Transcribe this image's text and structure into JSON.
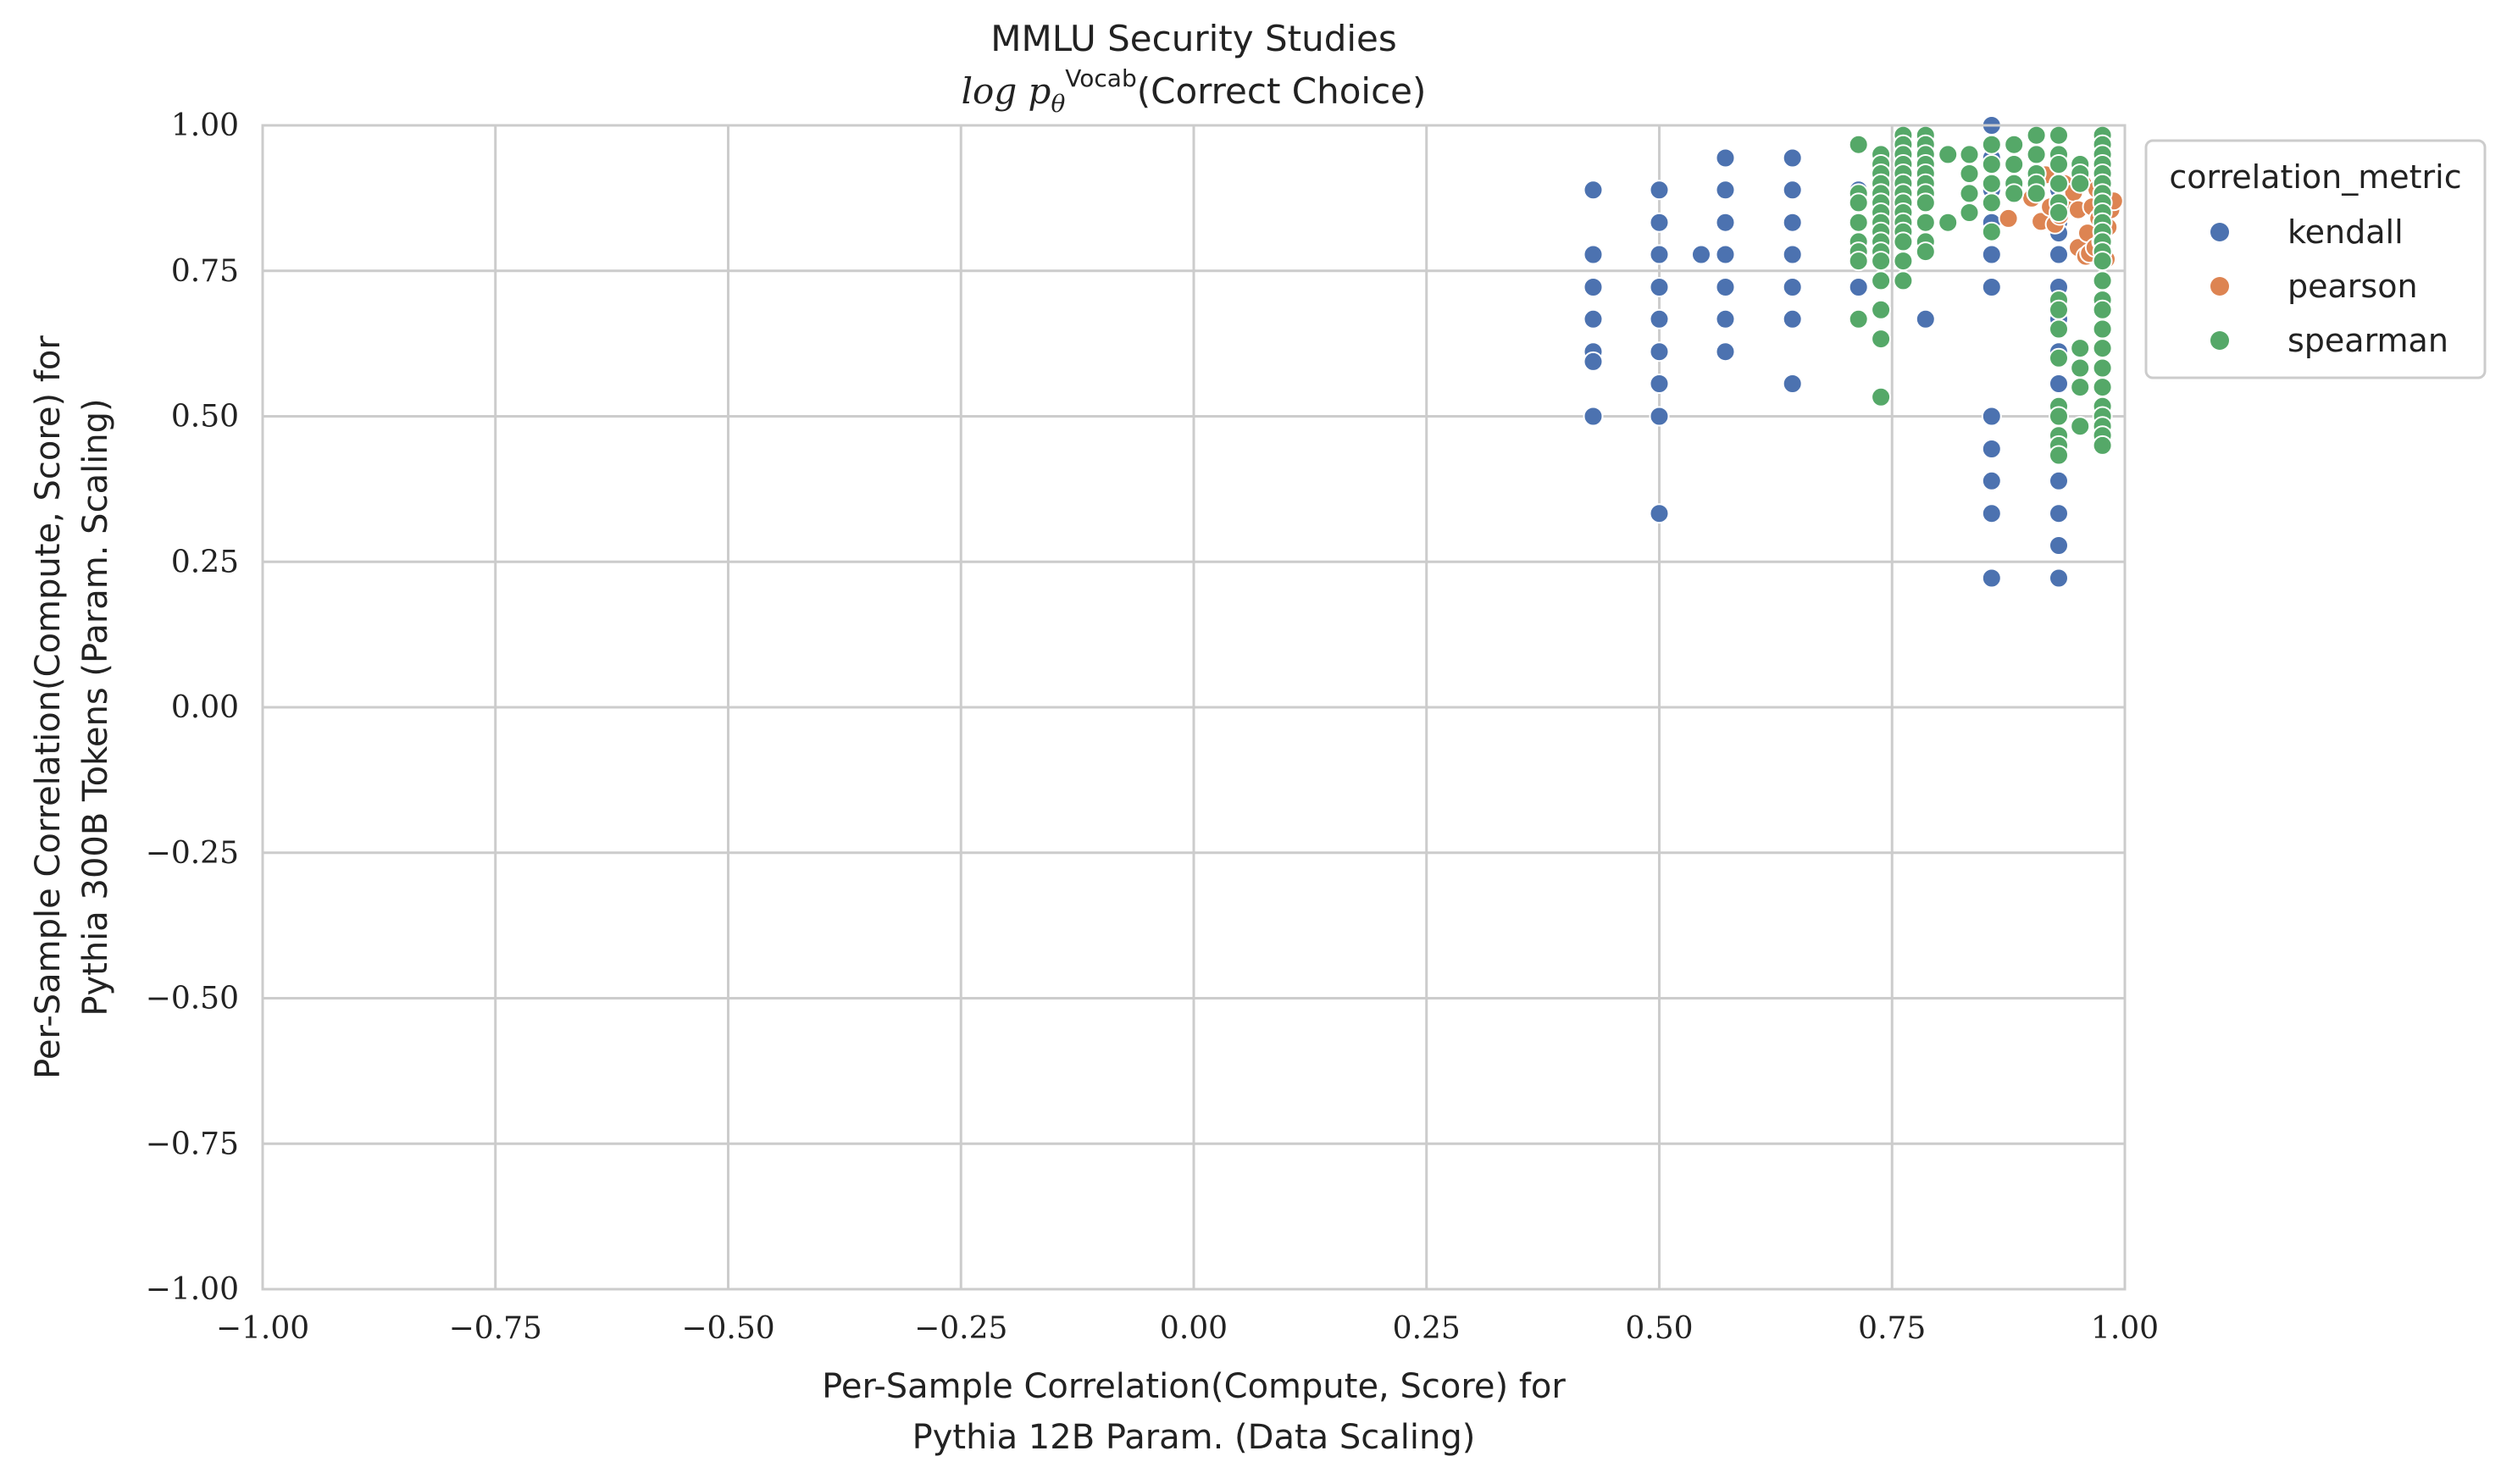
{
  "chart_data": {
    "type": "scatter",
    "title": "MMLU Security Studies",
    "subtitle_math": "log p",
    "subtitle_sub": "θ",
    "subtitle_sup": "Vocab",
    "subtitle_rest": "(Correct Choice)",
    "xlabel_line1": "Per-Sample Correlation(Compute, Score) for",
    "xlabel_line2": "Pythia 12B Param. (Data Scaling)",
    "ylabel_line1": "Per-Sample Correlation(Compute, Score) for",
    "ylabel_line2": "Pythia 300B Tokens (Param. Scaling)",
    "xlim": [
      -1.0,
      1.0
    ],
    "ylim": [
      -1.0,
      1.0
    ],
    "xticks": [
      "−1.00",
      "−0.75",
      "−0.50",
      "−0.25",
      "0.00",
      "0.25",
      "0.50",
      "0.75",
      "1.00"
    ],
    "yticks": [
      "1.00",
      "0.75",
      "0.50",
      "0.25",
      "0.00",
      "−0.25",
      "−0.50",
      "−0.75",
      "−1.00"
    ],
    "grid": true,
    "legend": {
      "title": "correlation_metric",
      "placement": "outside-top-right",
      "entries": [
        "kendall",
        "pearson",
        "spearman"
      ]
    },
    "series": [
      {
        "name": "kendall",
        "color": "#4c72b0",
        "points": [
          [
            0.429,
            0.889
          ],
          [
            0.429,
            0.778
          ],
          [
            0.429,
            0.722
          ],
          [
            0.429,
            0.667
          ],
          [
            0.429,
            0.611
          ],
          [
            0.429,
            0.594
          ],
          [
            0.429,
            0.5
          ],
          [
            0.5,
            0.889
          ],
          [
            0.5,
            0.833
          ],
          [
            0.5,
            0.778
          ],
          [
            0.5,
            0.722
          ],
          [
            0.5,
            0.667
          ],
          [
            0.5,
            0.611
          ],
          [
            0.5,
            0.556
          ],
          [
            0.5,
            0.5
          ],
          [
            0.5,
            0.333
          ],
          [
            0.545,
            0.778
          ],
          [
            0.571,
            0.944
          ],
          [
            0.571,
            0.889
          ],
          [
            0.571,
            0.833
          ],
          [
            0.571,
            0.778
          ],
          [
            0.571,
            0.722
          ],
          [
            0.571,
            0.667
          ],
          [
            0.571,
            0.611
          ],
          [
            0.643,
            0.944
          ],
          [
            0.643,
            0.889
          ],
          [
            0.643,
            0.833
          ],
          [
            0.643,
            0.778
          ],
          [
            0.643,
            0.722
          ],
          [
            0.643,
            0.667
          ],
          [
            0.643,
            0.556
          ],
          [
            0.714,
            0.833
          ],
          [
            0.714,
            0.778
          ],
          [
            0.714,
            0.722
          ],
          [
            0.714,
            0.889
          ],
          [
            0.786,
            0.667
          ],
          [
            0.786,
            0.833
          ],
          [
            0.857,
            1.0
          ],
          [
            0.857,
            0.944
          ],
          [
            0.857,
            0.889
          ],
          [
            0.857,
            0.833
          ],
          [
            0.857,
            0.778
          ],
          [
            0.857,
            0.722
          ],
          [
            0.857,
            0.5
          ],
          [
            0.857,
            0.444
          ],
          [
            0.857,
            0.389
          ],
          [
            0.857,
            0.333
          ],
          [
            0.857,
            0.222
          ],
          [
            0.929,
            0.944
          ],
          [
            0.929,
            0.889
          ],
          [
            0.929,
            0.833
          ],
          [
            0.929,
            0.815
          ],
          [
            0.929,
            0.778
          ],
          [
            0.929,
            0.722
          ],
          [
            0.929,
            0.685
          ],
          [
            0.929,
            0.667
          ],
          [
            0.929,
            0.648
          ],
          [
            0.929,
            0.611
          ],
          [
            0.929,
            0.556
          ],
          [
            0.929,
            0.5
          ],
          [
            0.929,
            0.444
          ],
          [
            0.929,
            0.389
          ],
          [
            0.929,
            0.333
          ],
          [
            0.929,
            0.278
          ],
          [
            0.929,
            0.222
          ],
          [
            0.976,
            0.889
          ],
          [
            0.976,
            0.833
          ]
        ]
      },
      {
        "name": "pearson",
        "color": "#dd8452",
        "points": [
          [
            0.875,
            0.84
          ],
          [
            0.9,
            0.875
          ],
          [
            0.91,
            0.835
          ],
          [
            0.915,
            0.915
          ],
          [
            0.92,
            0.86
          ],
          [
            0.925,
            0.83
          ],
          [
            0.93,
            0.845
          ],
          [
            0.935,
            0.9
          ],
          [
            0.94,
            0.87
          ],
          [
            0.945,
            0.885
          ],
          [
            0.95,
            0.79
          ],
          [
            0.95,
            0.855
          ],
          [
            0.955,
            0.9
          ],
          [
            0.958,
            0.775
          ],
          [
            0.96,
            0.815
          ],
          [
            0.962,
            0.78
          ],
          [
            0.965,
            0.86
          ],
          [
            0.968,
            0.79
          ],
          [
            0.97,
            0.89
          ],
          [
            0.972,
            0.84
          ],
          [
            0.975,
            0.8
          ],
          [
            0.978,
            0.87
          ],
          [
            0.98,
            0.77
          ],
          [
            0.982,
            0.825
          ],
          [
            0.985,
            0.855
          ],
          [
            0.988,
            0.87
          ]
        ]
      },
      {
        "name": "spearman",
        "color": "#55a868",
        "points": [
          [
            0.714,
            0.967
          ],
          [
            0.714,
            0.883
          ],
          [
            0.714,
            0.867
          ],
          [
            0.714,
            0.833
          ],
          [
            0.714,
            0.8
          ],
          [
            0.714,
            0.783
          ],
          [
            0.714,
            0.767
          ],
          [
            0.714,
            0.667
          ],
          [
            0.738,
            0.95
          ],
          [
            0.738,
            0.933
          ],
          [
            0.738,
            0.917
          ],
          [
            0.738,
            0.9
          ],
          [
            0.738,
            0.883
          ],
          [
            0.738,
            0.867
          ],
          [
            0.738,
            0.85
          ],
          [
            0.738,
            0.833
          ],
          [
            0.738,
            0.817
          ],
          [
            0.738,
            0.8
          ],
          [
            0.738,
            0.783
          ],
          [
            0.738,
            0.767
          ],
          [
            0.738,
            0.733
          ],
          [
            0.738,
            0.683
          ],
          [
            0.738,
            0.633
          ],
          [
            0.738,
            0.533
          ],
          [
            0.762,
            0.983
          ],
          [
            0.762,
            0.967
          ],
          [
            0.762,
            0.95
          ],
          [
            0.762,
            0.933
          ],
          [
            0.762,
            0.917
          ],
          [
            0.762,
            0.9
          ],
          [
            0.762,
            0.883
          ],
          [
            0.762,
            0.867
          ],
          [
            0.762,
            0.85
          ],
          [
            0.762,
            0.833
          ],
          [
            0.762,
            0.817
          ],
          [
            0.762,
            0.8
          ],
          [
            0.762,
            0.767
          ],
          [
            0.762,
            0.733
          ],
          [
            0.786,
            0.983
          ],
          [
            0.786,
            0.967
          ],
          [
            0.786,
            0.95
          ],
          [
            0.786,
            0.933
          ],
          [
            0.786,
            0.917
          ],
          [
            0.786,
            0.9
          ],
          [
            0.786,
            0.883
          ],
          [
            0.786,
            0.867
          ],
          [
            0.786,
            0.833
          ],
          [
            0.786,
            0.8
          ],
          [
            0.786,
            0.783
          ],
          [
            0.81,
            0.95
          ],
          [
            0.81,
            0.833
          ],
          [
            0.833,
            0.95
          ],
          [
            0.833,
            0.917
          ],
          [
            0.833,
            0.883
          ],
          [
            0.833,
            0.85
          ],
          [
            0.857,
            0.967
          ],
          [
            0.857,
            0.933
          ],
          [
            0.857,
            0.9
          ],
          [
            0.857,
            0.867
          ],
          [
            0.857,
            0.817
          ],
          [
            0.881,
            0.967
          ],
          [
            0.881,
            0.933
          ],
          [
            0.881,
            0.9
          ],
          [
            0.881,
            0.883
          ],
          [
            0.905,
            0.983
          ],
          [
            0.905,
            0.95
          ],
          [
            0.905,
            0.917
          ],
          [
            0.905,
            0.9
          ],
          [
            0.905,
            0.883
          ],
          [
            0.929,
            0.983
          ],
          [
            0.929,
            0.95
          ],
          [
            0.929,
            0.933
          ],
          [
            0.929,
            0.9
          ],
          [
            0.929,
            0.867
          ],
          [
            0.929,
            0.85
          ],
          [
            0.929,
            0.7
          ],
          [
            0.929,
            0.683
          ],
          [
            0.929,
            0.65
          ],
          [
            0.929,
            0.6
          ],
          [
            0.929,
            0.517
          ],
          [
            0.929,
            0.5
          ],
          [
            0.929,
            0.467
          ],
          [
            0.929,
            0.45
          ],
          [
            0.929,
            0.433
          ],
          [
            0.952,
            0.933
          ],
          [
            0.952,
            0.917
          ],
          [
            0.952,
            0.9
          ],
          [
            0.952,
            0.617
          ],
          [
            0.952,
            0.583
          ],
          [
            0.952,
            0.55
          ],
          [
            0.952,
            0.483
          ],
          [
            0.976,
            0.983
          ],
          [
            0.976,
            0.967
          ],
          [
            0.976,
            0.95
          ],
          [
            0.976,
            0.933
          ],
          [
            0.976,
            0.917
          ],
          [
            0.976,
            0.9
          ],
          [
            0.976,
            0.883
          ],
          [
            0.976,
            0.867
          ],
          [
            0.976,
            0.85
          ],
          [
            0.976,
            0.833
          ],
          [
            0.976,
            0.817
          ],
          [
            0.976,
            0.8
          ],
          [
            0.976,
            0.783
          ],
          [
            0.976,
            0.767
          ],
          [
            0.976,
            0.733
          ],
          [
            0.976,
            0.7
          ],
          [
            0.976,
            0.683
          ],
          [
            0.976,
            0.65
          ],
          [
            0.976,
            0.617
          ],
          [
            0.976,
            0.583
          ],
          [
            0.976,
            0.55
          ],
          [
            0.976,
            0.517
          ],
          [
            0.976,
            0.5
          ],
          [
            0.976,
            0.483
          ],
          [
            0.976,
            0.467
          ],
          [
            0.976,
            0.45
          ]
        ]
      }
    ]
  }
}
